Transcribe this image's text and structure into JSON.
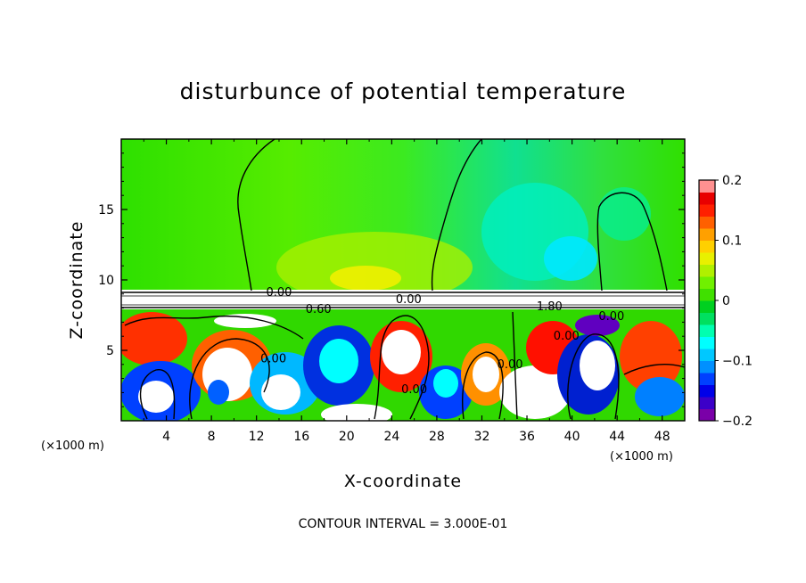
{
  "chart_data": {
    "type": "heatmap",
    "title": "disturbunce of potential temperature",
    "xlabel": "X-coordinate",
    "ylabel": "Z-coordinate",
    "x_unit": "(×1000 m)",
    "z_unit": "(×1000 m)",
    "xlim": [
      0,
      50
    ],
    "ylim": [
      0,
      20
    ],
    "x_ticks": [
      "4",
      "8",
      "12",
      "16",
      "20",
      "24",
      "28",
      "32",
      "36",
      "40",
      "44",
      "48"
    ],
    "x_tick_values": [
      4,
      8,
      12,
      16,
      20,
      24,
      28,
      32,
      36,
      40,
      44,
      48
    ],
    "y_ticks": [
      "5",
      "10",
      "15"
    ],
    "y_tick_values": [
      5,
      10,
      15
    ],
    "colorbar": {
      "range": [
        -0.2,
        0.2
      ],
      "tick_labels": [
        "0.2",
        "0.1",
        "0",
        "−0.1",
        "−0.2"
      ],
      "tick_values": [
        0.2,
        0.1,
        0,
        -0.1,
        -0.2
      ],
      "colors": [
        "#7a00a8",
        "#3c00c8",
        "#0000e8",
        "#0040ff",
        "#0090ff",
        "#00c8ff",
        "#00ffff",
        "#00ffb0",
        "#00e060",
        "#00d020",
        "#40e000",
        "#70f000",
        "#b0f000",
        "#e8f000",
        "#ffd000",
        "#ffa000",
        "#ff6000",
        "#ff2000",
        "#e80000",
        "#ff9090"
      ]
    },
    "contour_labels": [
      {
        "text": "0.00",
        "x": 14.0,
        "z": 9.1
      },
      {
        "text": "0.60",
        "x": 17.5,
        "z": 7.9
      },
      {
        "text": "0.00",
        "x": 25.5,
        "z": 8.6
      },
      {
        "text": "1.80",
        "x": 38.0,
        "z": 8.1
      },
      {
        "text": "0.00",
        "x": 13.5,
        "z": 4.4
      },
      {
        "text": "0.00",
        "x": 26.0,
        "z": 2.2
      },
      {
        "text": "0.00",
        "x": 34.5,
        "z": 4.0
      },
      {
        "text": "0.00",
        "x": 39.5,
        "z": 6.0
      },
      {
        "text": "0.00",
        "x": 43.5,
        "z": 7.4
      }
    ],
    "footer": "CONTOUR INTERVAL = 3.000E-01"
  }
}
